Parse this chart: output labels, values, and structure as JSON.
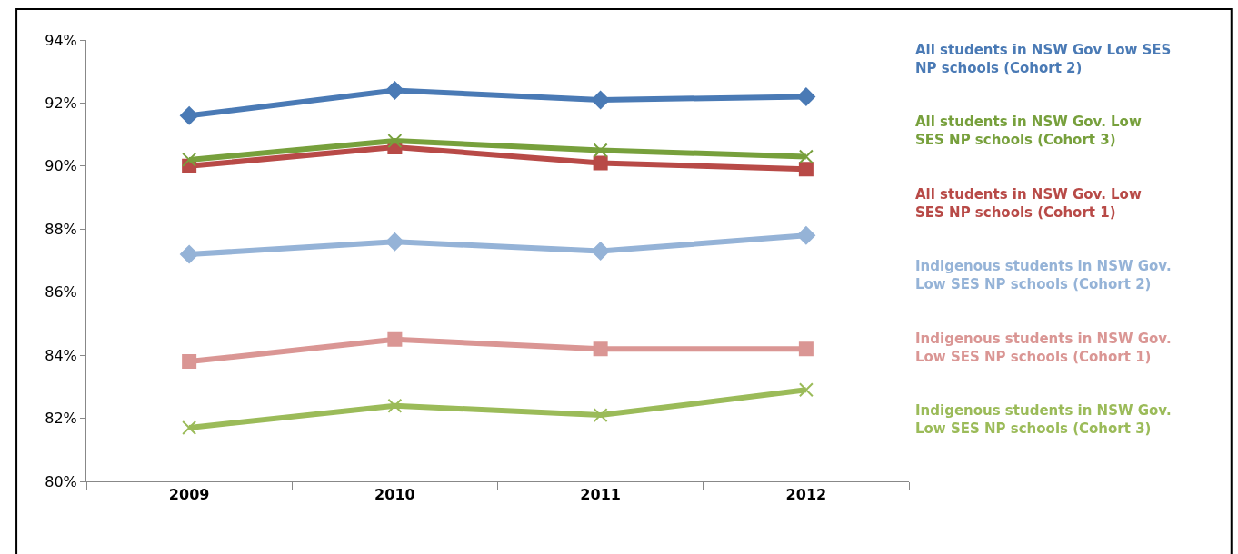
{
  "chart_data": {
    "type": "line",
    "categories": [
      "2009",
      "2010",
      "2011",
      "2012"
    ],
    "series": [
      {
        "name": "All students in NSW Gov Low SES NP schools (Cohort 2)",
        "color": "#4a7ab5",
        "marker": "diamond",
        "values": [
          91.6,
          92.4,
          92.1,
          92.2
        ]
      },
      {
        "name": "All students in NSW Gov. Low SES NP schools (Cohort 3)",
        "color": "#77a03c",
        "marker": "cross",
        "values": [
          90.2,
          90.8,
          90.5,
          90.3
        ]
      },
      {
        "name": "All students in NSW Gov. Low SES NP schools (Cohort 1)",
        "color": "#b84a47",
        "marker": "square",
        "values": [
          90.0,
          90.6,
          90.1,
          89.9
        ]
      },
      {
        "name": "Indigenous students in NSW Gov. Low SES NP schools (Cohort 2)",
        "color": "#95b3d7",
        "marker": "diamond",
        "values": [
          87.2,
          87.6,
          87.3,
          87.8
        ]
      },
      {
        "name": "Indigenous students in NSW Gov. Low SES NP schools (Cohort 1)",
        "color": "#da9694",
        "marker": "square",
        "values": [
          83.8,
          84.5,
          84.2,
          84.2
        ]
      },
      {
        "name": "Indigenous students in NSW Gov. Low SES NP schools (Cohort 3)",
        "color": "#9bbb59",
        "marker": "cross",
        "values": [
          81.7,
          82.4,
          82.1,
          82.9
        ]
      }
    ],
    "ylim": [
      80,
      94
    ],
    "yticks": [
      {
        "value": 80,
        "label": "80%"
      },
      {
        "value": 82,
        "label": "82%"
      },
      {
        "value": 84,
        "label": "84%"
      },
      {
        "value": 86,
        "label": "86%"
      },
      {
        "value": 88,
        "label": "88%"
      },
      {
        "value": 90,
        "label": "90%"
      },
      {
        "value": 92,
        "label": "92%"
      },
      {
        "value": 94,
        "label": "94%"
      }
    ],
    "legend": false,
    "line_style": "solid"
  }
}
